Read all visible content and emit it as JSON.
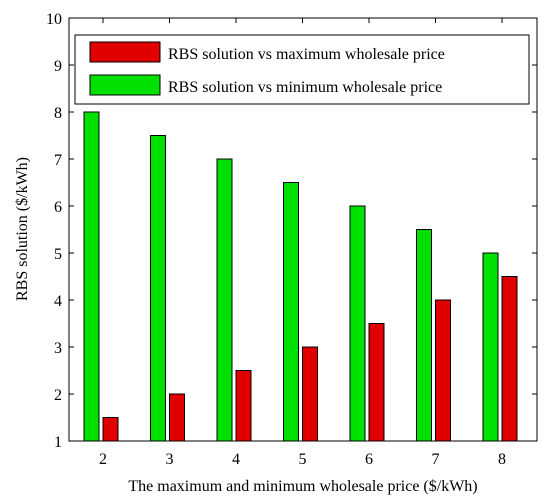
{
  "chart_data": {
    "type": "bar",
    "categories": [
      "2",
      "3",
      "4",
      "5",
      "6",
      "7",
      "8"
    ],
    "series": [
      {
        "name": "RBS solution vs maximum wholesale price",
        "color": "#e00000",
        "values": [
          1.5,
          2.0,
          2.5,
          3.0,
          3.5,
          4.0,
          4.5
        ]
      },
      {
        "name": "RBS solution vs minimum wholesale price",
        "color": "#00e000",
        "values": [
          8.0,
          7.5,
          7.0,
          6.5,
          6.0,
          5.5,
          5.0
        ]
      }
    ],
    "xlabel": "The maximum and minimum wholesale price ($/kWh)",
    "ylabel": "RBS solution ($/kWh)",
    "ylim": [
      1,
      10
    ],
    "yticks": [
      "1",
      "2",
      "3",
      "4",
      "5",
      "6",
      "7",
      "8",
      "9",
      "10"
    ],
    "grid": false,
    "legend_position": "top-right"
  }
}
